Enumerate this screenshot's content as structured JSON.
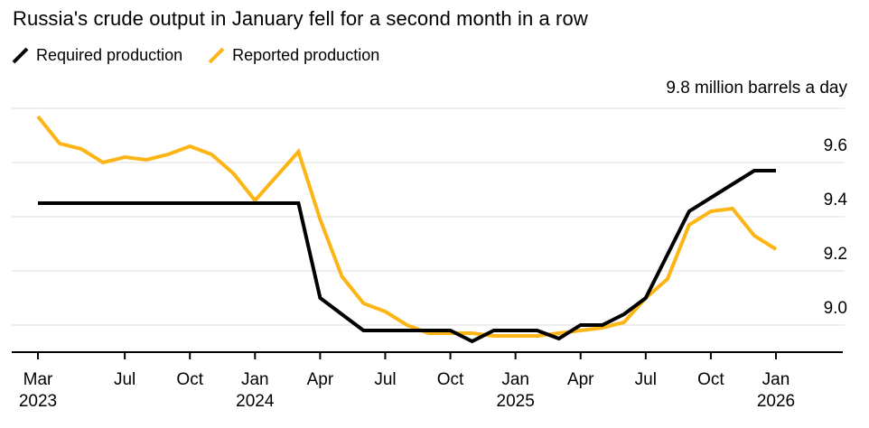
{
  "title": "Russia's crude output in January fell for a second month in a row",
  "axis_unit_label": "9.8 million barrels a day",
  "colors": {
    "required_line": "#000000",
    "reported_line": "#fcb514",
    "gridline": "#dcdcdc",
    "axis": "#000000",
    "background": "#ffffff",
    "text": "#000000"
  },
  "chart_data": {
    "type": "line",
    "title": "Russia's crude output in January fell for a second month in a row",
    "xlabel": "",
    "ylabel": "million barrels a day",
    "ylim": [
      8.9,
      9.8
    ],
    "grid": "horizontal",
    "legend_position": "top-left",
    "months": [
      "Mar 2023",
      "Apr 2023",
      "May 2023",
      "Jun 2023",
      "Jul 2023",
      "Aug 2023",
      "Sep 2023",
      "Oct 2023",
      "Nov 2023",
      "Dec 2023",
      "Jan 2024",
      "Feb 2024",
      "Mar 2024",
      "Apr 2024",
      "May 2024",
      "Jun 2024",
      "Jul 2024",
      "Aug 2024",
      "Sep 2024",
      "Oct 2024",
      "Nov 2024",
      "Dec 2024",
      "Jan 2025",
      "Feb 2025",
      "Mar 2025",
      "Apr 2025",
      "May 2025",
      "Jun 2025",
      "Jul 2025",
      "Aug 2025",
      "Sep 2025",
      "Oct 2025",
      "Nov 2025",
      "Dec 2025",
      "Jan 2026"
    ],
    "series": [
      {
        "name": "Required production",
        "color": "#000000",
        "values": [
          9.45,
          9.45,
          9.45,
          9.45,
          9.45,
          9.45,
          9.45,
          9.45,
          9.45,
          9.45,
          9.45,
          9.45,
          9.45,
          9.1,
          9.04,
          8.98,
          8.98,
          8.98,
          8.98,
          8.98,
          8.94,
          8.98,
          8.98,
          8.98,
          8.95,
          9.0,
          9.0,
          9.04,
          9.1,
          9.26,
          9.42,
          9.47,
          9.52,
          9.57,
          9.57
        ]
      },
      {
        "name": "Reported production",
        "color": "#fcb514",
        "values": [
          9.77,
          9.67,
          9.65,
          9.6,
          9.62,
          9.61,
          9.63,
          9.66,
          9.63,
          9.56,
          9.46,
          9.55,
          9.64,
          9.39,
          9.18,
          9.08,
          9.05,
          9.0,
          8.97,
          8.97,
          8.97,
          8.96,
          8.96,
          8.96,
          8.97,
          8.98,
          8.99,
          9.01,
          9.1,
          9.17,
          9.37,
          9.42,
          9.43,
          9.33,
          9.28
        ]
      }
    ],
    "y_gridlines": [
      9.8,
      9.6,
      9.4,
      9.2,
      9.0
    ],
    "y_tick_labels": [
      {
        "value": 9.6,
        "label": "9.6"
      },
      {
        "value": 9.4,
        "label": "9.4"
      },
      {
        "value": 9.2,
        "label": "9.2"
      },
      {
        "value": 9.0,
        "label": "9.0"
      }
    ],
    "x_ticks": [
      {
        "month_index": 0,
        "label": "Mar",
        "year": "2023"
      },
      {
        "month_index": 4,
        "label": "Jul"
      },
      {
        "month_index": 7,
        "label": "Oct"
      },
      {
        "month_index": 10,
        "label": "Jan",
        "year": "2024"
      },
      {
        "month_index": 13,
        "label": "Apr"
      },
      {
        "month_index": 16,
        "label": "Jul"
      },
      {
        "month_index": 19,
        "label": "Oct"
      },
      {
        "month_index": 22,
        "label": "Jan",
        "year": "2025"
      },
      {
        "month_index": 25,
        "label": "Apr"
      },
      {
        "month_index": 28,
        "label": "Jul"
      },
      {
        "month_index": 31,
        "label": "Oct"
      },
      {
        "month_index": 34,
        "label": "Jan",
        "year": "2026"
      }
    ]
  }
}
